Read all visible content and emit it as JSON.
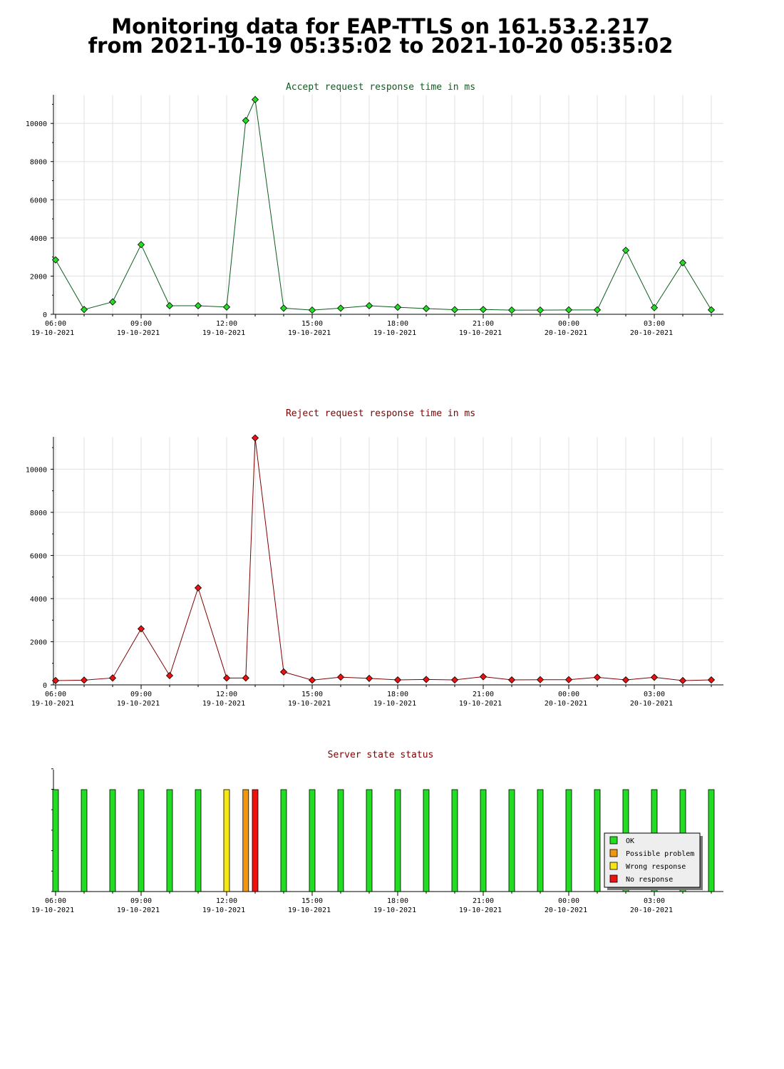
{
  "page": {
    "title_line1": "Monitoring data for EAP-TTLS on 161.53.2.217",
    "title_line2": "from 2021-10-19 05:35:02 to 2021-10-20 05:35:02"
  },
  "colors": {
    "accept_line": "#0b5f1c",
    "accept_marker": "#22dd22",
    "reject_line": "#800000",
    "reject_marker": "#ee1111",
    "ok": "#22dd22",
    "possible_problem": "#f0960f",
    "wrong_response": "#f5e614",
    "no_response": "#ee1111",
    "grid": "#e0e0e0"
  },
  "x_ticks": [
    {
      "time": "06:00",
      "date": "19-10-2021"
    },
    {
      "time": "09:00",
      "date": "19-10-2021"
    },
    {
      "time": "12:00",
      "date": "19-10-2021"
    },
    {
      "time": "15:00",
      "date": "19-10-2021"
    },
    {
      "time": "18:00",
      "date": "19-10-2021"
    },
    {
      "time": "21:00",
      "date": "19-10-2021"
    },
    {
      "time": "00:00",
      "date": "20-10-2021"
    },
    {
      "time": "03:00",
      "date": "20-10-2021"
    }
  ],
  "chart_data": [
    {
      "type": "line",
      "title": "Accept request response time in ms",
      "xlabel": "",
      "ylabel": "",
      "x_unit": "hours since 2021-10-19 06:00",
      "xlim": [
        0,
        23.5
      ],
      "ylim": [
        0,
        11500
      ],
      "y_ticks": [
        0,
        2000,
        4000,
        6000,
        8000,
        10000
      ],
      "grid": true,
      "x": [
        0,
        1,
        2,
        3,
        4,
        5,
        6,
        6.67,
        7,
        8,
        9,
        10,
        11,
        12,
        13,
        14,
        15,
        16,
        17,
        18,
        19,
        20,
        21,
        22,
        23
      ],
      "values": [
        2850,
        250,
        650,
        3650,
        450,
        450,
        380,
        10150,
        11250,
        320,
        220,
        320,
        450,
        370,
        300,
        240,
        250,
        220,
        220,
        230,
        230,
        3350,
        350,
        2700,
        230
      ]
    },
    {
      "type": "line",
      "title": "Reject request response time in ms",
      "xlabel": "",
      "ylabel": "",
      "x_unit": "hours since 2021-10-19 06:00",
      "xlim": [
        0,
        23.5
      ],
      "ylim": [
        0,
        11500
      ],
      "y_ticks": [
        0,
        2000,
        4000,
        6000,
        8000,
        10000
      ],
      "grid": true,
      "x": [
        0,
        1,
        2,
        3,
        4,
        5,
        6,
        6.67,
        7,
        8,
        9,
        10,
        11,
        12,
        13,
        14,
        15,
        16,
        17,
        18,
        19,
        20,
        21,
        22,
        23
      ],
      "values": [
        200,
        220,
        320,
        2600,
        430,
        4500,
        320,
        320,
        11450,
        600,
        220,
        360,
        300,
        230,
        250,
        230,
        380,
        230,
        240,
        240,
        350,
        230,
        350,
        200,
        230
      ]
    },
    {
      "type": "bar",
      "title": "Server state status",
      "xlabel": "",
      "ylabel": "",
      "x_unit": "hours since 2021-10-19 06:00",
      "xlim": [
        0,
        23.5
      ],
      "grid": false,
      "legend_position": "right",
      "legend": [
        {
          "key": "ok",
          "label": "OK"
        },
        {
          "key": "possible_problem",
          "label": "Possible problem"
        },
        {
          "key": "wrong_response",
          "label": "Wrong response"
        },
        {
          "key": "no_response",
          "label": "No response"
        }
      ],
      "x": [
        0,
        1,
        2,
        3,
        4,
        5,
        6,
        6.67,
        7,
        8,
        9,
        10,
        11,
        12,
        13,
        14,
        15,
        16,
        17,
        18,
        19,
        20,
        21,
        22,
        23
      ],
      "states": [
        "ok",
        "ok",
        "ok",
        "ok",
        "ok",
        "ok",
        "wrong_response",
        "possible_problem",
        "no_response",
        "ok",
        "ok",
        "ok",
        "ok",
        "ok",
        "ok",
        "ok",
        "ok",
        "ok",
        "ok",
        "ok",
        "ok",
        "ok",
        "ok",
        "ok",
        "ok"
      ]
    }
  ]
}
